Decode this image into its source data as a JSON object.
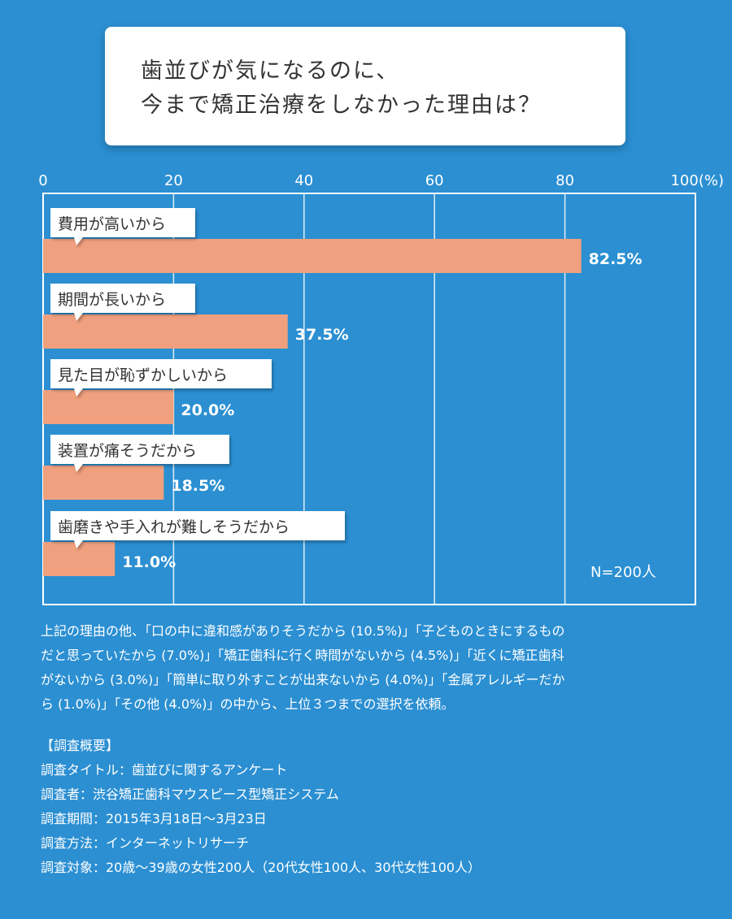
{
  "title": {
    "line1": "歯並びが気になるのに、",
    "line2": "今まで矯正治療をしなかった理由は？"
  },
  "chart_data": {
    "type": "bar",
    "orientation": "horizontal",
    "categories": [
      "費用が高いから",
      "期間が長いから",
      "見た目が恥ずかしいから",
      "装置が痛そうだから",
      "歯磨きや手入れが難しそうだから"
    ],
    "values": [
      82.5,
      37.5,
      20.0,
      18.5,
      11.0
    ],
    "value_labels": [
      "82.5%",
      "37.5%",
      "20.0%",
      "18.5%",
      "11.0%"
    ],
    "x_ticks": [
      "0",
      "20",
      "40",
      "60",
      "80",
      "100(%)"
    ],
    "xlim": [
      0,
      100
    ],
    "grid": true,
    "annotation": "N=200人",
    "colors": {
      "bar": "#f0a07e",
      "background": "#2b8fd2",
      "grid": "#ffffff",
      "callout_bg": "#ffffff",
      "callout_text": "#333333"
    }
  },
  "note": {
    "line1": "上記の理由の他、「口の中に違和感がありそうだから (10.5%)」「子どものときにするもの",
    "line2": "だと思っていたから (7.0%)」「矯正歯科に行く時間がないから (4.5%)」「近くに矯正歯科",
    "line3": "がないから (3.0%)」「簡単に取り外すことが出来ないから (4.0%)」「金属アレルギーだか",
    "line4": "ら (1.0%)」「その他 (4.0%)」の中から、上位３つまでの選択を依頼。"
  },
  "survey": {
    "heading": "【調査概要】",
    "title": "調査タイトル：歯並びに関するアンケート",
    "conductor": "調査者：渋谷矯正歯科マウスピース型矯正システム",
    "period": "調査期間：2015年3月18日～3月23日",
    "method": "調査方法：インターネットリサーチ",
    "target": "調査対象：20歳～39歳の女性200人（20代女性100人、30代女性100人）"
  }
}
